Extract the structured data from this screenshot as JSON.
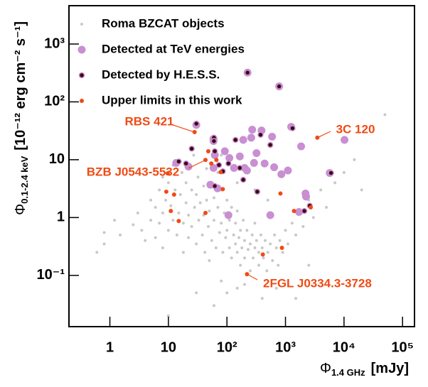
{
  "chart_data": {
    "type": "scatter",
    "xlabel": {
      "symbol": "Φ",
      "subscript": "1.4 GHz",
      "unit": "[mJy]"
    },
    "ylabel": {
      "symbol": "Φ",
      "subscript": "0.1-2.4 keV",
      "unit": "[10⁻¹² erg cm⁻² s⁻¹]"
    },
    "xlog": true,
    "ylog": true,
    "grid": false,
    "legend": "upper left",
    "xlim": [
      0.2,
      160000
    ],
    "ylim": [
      0.013,
      4600
    ],
    "xticks": [
      1,
      10,
      {
        "value": 100,
        "label": "10²"
      },
      {
        "value": 1000,
        "label": "10³"
      },
      {
        "value": 10000,
        "label": "10⁴"
      },
      {
        "value": 100000,
        "label": "10⁵"
      }
    ],
    "yticks": [
      {
        "value": 0.1,
        "label": "10⁻¹"
      },
      1,
      10,
      {
        "value": 100,
        "label": "10²"
      },
      {
        "value": 1000,
        "label": "10³"
      }
    ],
    "series": [
      {
        "name": "Roma BZCAT objects",
        "color": "#c8c8c8",
        "x": [
          0.8,
          0.8,
          1.2,
          1.5,
          2.5,
          3,
          3.5,
          4,
          5,
          5,
          6,
          6,
          7,
          7,
          8,
          8,
          8,
          9,
          10,
          10,
          11,
          12,
          12,
          13,
          14,
          15,
          16,
          17,
          18,
          18,
          20,
          20,
          22,
          22,
          25,
          25,
          27,
          28,
          30,
          30,
          32,
          33,
          35,
          38,
          40,
          40,
          42,
          45,
          45,
          48,
          50,
          50,
          55,
          55,
          60,
          60,
          65,
          70,
          70,
          75,
          80,
          80,
          85,
          90,
          95,
          100,
          100,
          110,
          110,
          120,
          120,
          130,
          140,
          140,
          150,
          150,
          160,
          170,
          170,
          180,
          190,
          200,
          200,
          220,
          230,
          250,
          250,
          270,
          280,
          300,
          300,
          320,
          350,
          350,
          380,
          400,
          420,
          450,
          480,
          500,
          550,
          600,
          650,
          700,
          750,
          800,
          900,
          1000,
          1100,
          1300,
          1500,
          1800,
          2000,
          2500,
          3000,
          4000,
          5000,
          7000,
          10000,
          15000,
          20000,
          50000,
          400,
          100,
          60,
          10,
          30,
          200,
          700,
          1500,
          2500,
          80,
          150,
          0.6,
          500,
          300,
          150,
          80,
          200
        ],
        "values": [
          0.55,
          0.35,
          0.9,
          0.5,
          0.75,
          1.2,
          0.6,
          0.4,
          2,
          0.9,
          1.5,
          0.45,
          3,
          0.8,
          5,
          1.2,
          0.3,
          2,
          0.6,
          4,
          1.6,
          0.9,
          8,
          3,
          0.5,
          1.2,
          2.5,
          6,
          0.8,
          0.25,
          1.8,
          4,
          1.1,
          0.45,
          3,
          0.7,
          12,
          1.5,
          0.35,
          2.5,
          5,
          0.9,
          1.8,
          0.5,
          3.5,
          1.1,
          0.25,
          7,
          2,
          0.7,
          1.3,
          0.18,
          4,
          0.4,
          2.2,
          0.9,
          0.3,
          1.5,
          6,
          0.55,
          0.8,
          3,
          0.25,
          1.2,
          0.45,
          2,
          0.6,
          0.3,
          0.9,
          1.5,
          0.2,
          0.5,
          0.35,
          0.8,
          0.25,
          1.3,
          0.45,
          0.15,
          0.6,
          0.3,
          0.9,
          0.4,
          0.2,
          0.6,
          0.28,
          0.35,
          0.12,
          0.5,
          0.2,
          0.3,
          0.8,
          0.4,
          0.25,
          0.15,
          0.5,
          0.3,
          0.2,
          0.4,
          0.12,
          0.25,
          0.35,
          0.18,
          0.5,
          0.3,
          0.15,
          0.4,
          0.25,
          0.6,
          0.35,
          0.8,
          0.5,
          1.2,
          0.7,
          2,
          1,
          3,
          1.5,
          4,
          6,
          10,
          3,
          60,
          0.04,
          0.05,
          0.03,
          0.02,
          0.05,
          0.07,
          0.06,
          0.04,
          0.15,
          0.08,
          0.06,
          0.25,
          2,
          3,
          4,
          12,
          7
        ]
      },
      {
        "name": "Detected at TeV energies",
        "color": "#c98fd2",
        "x": [
          30,
          59,
          270,
          390,
          190,
          260,
          590,
          1250,
          1850,
          62,
          92,
          110,
          166,
          200,
          290,
          440,
          640,
          850,
          1100,
          320,
          59,
          52,
          106,
          550,
          2200,
          2250,
          10200,
          5700,
          1700,
          69,
          22,
          13.6,
          132,
          220,
          225,
          780,
          59
        ],
        "values": [
          40,
          23,
          33,
          32,
          22,
          24,
          25,
          37,
          17,
          12,
          14,
          10.7,
          11.4,
          7.2,
          8.8,
          8.6,
          7.4,
          5.6,
          6.5,
          13,
          7.2,
          3.7,
          1.1,
          1.1,
          2.6,
          2.3,
          22,
          5.9,
          1.25,
          3.2,
          7.6,
          8.8,
          7.2,
          6.5,
          320,
          185,
          21
        ]
      },
      {
        "name": "Detected by H.E.S.S.",
        "color": "#3d0812",
        "x": [
          225,
          780,
          30,
          60,
          60,
          25,
          140,
          375,
          550,
          1320,
          15,
          62,
          73,
          85,
          106,
          62,
          190,
          330,
          2100,
          2600,
          6000,
          166,
          20
        ],
        "values": [
          320,
          185,
          42,
          24,
          21,
          15.5,
          22,
          27,
          18,
          35,
          9.3,
          14,
          8.1,
          6.3,
          8.6,
          3.5,
          4.5,
          2.8,
          1.3,
          1.6,
          5.9,
          7.2,
          8.6
        ]
      },
      {
        "name": "Upper limits in this work",
        "color": "#f04a14",
        "x": [
          28,
          3500,
          43,
          48,
          54,
          78,
          85,
          9.7,
          9.2,
          12.5,
          820,
          11,
          43,
          15,
          1400,
          2700,
          870,
          410,
          220,
          66
        ],
        "values": [
          30,
          24,
          9.9,
          14,
          8.6,
          6.1,
          3.1,
          5.8,
          2.8,
          2.5,
          2.6,
          1.3,
          1.2,
          0.87,
          1.3,
          1.5,
          0.3,
          0.23,
          0.105,
          9.9
        ]
      }
    ],
    "annotations": [
      "RBS 421",
      "3C 120",
      "BZB J0543-5532",
      "2FGL J0334.3-3728"
    ]
  }
}
